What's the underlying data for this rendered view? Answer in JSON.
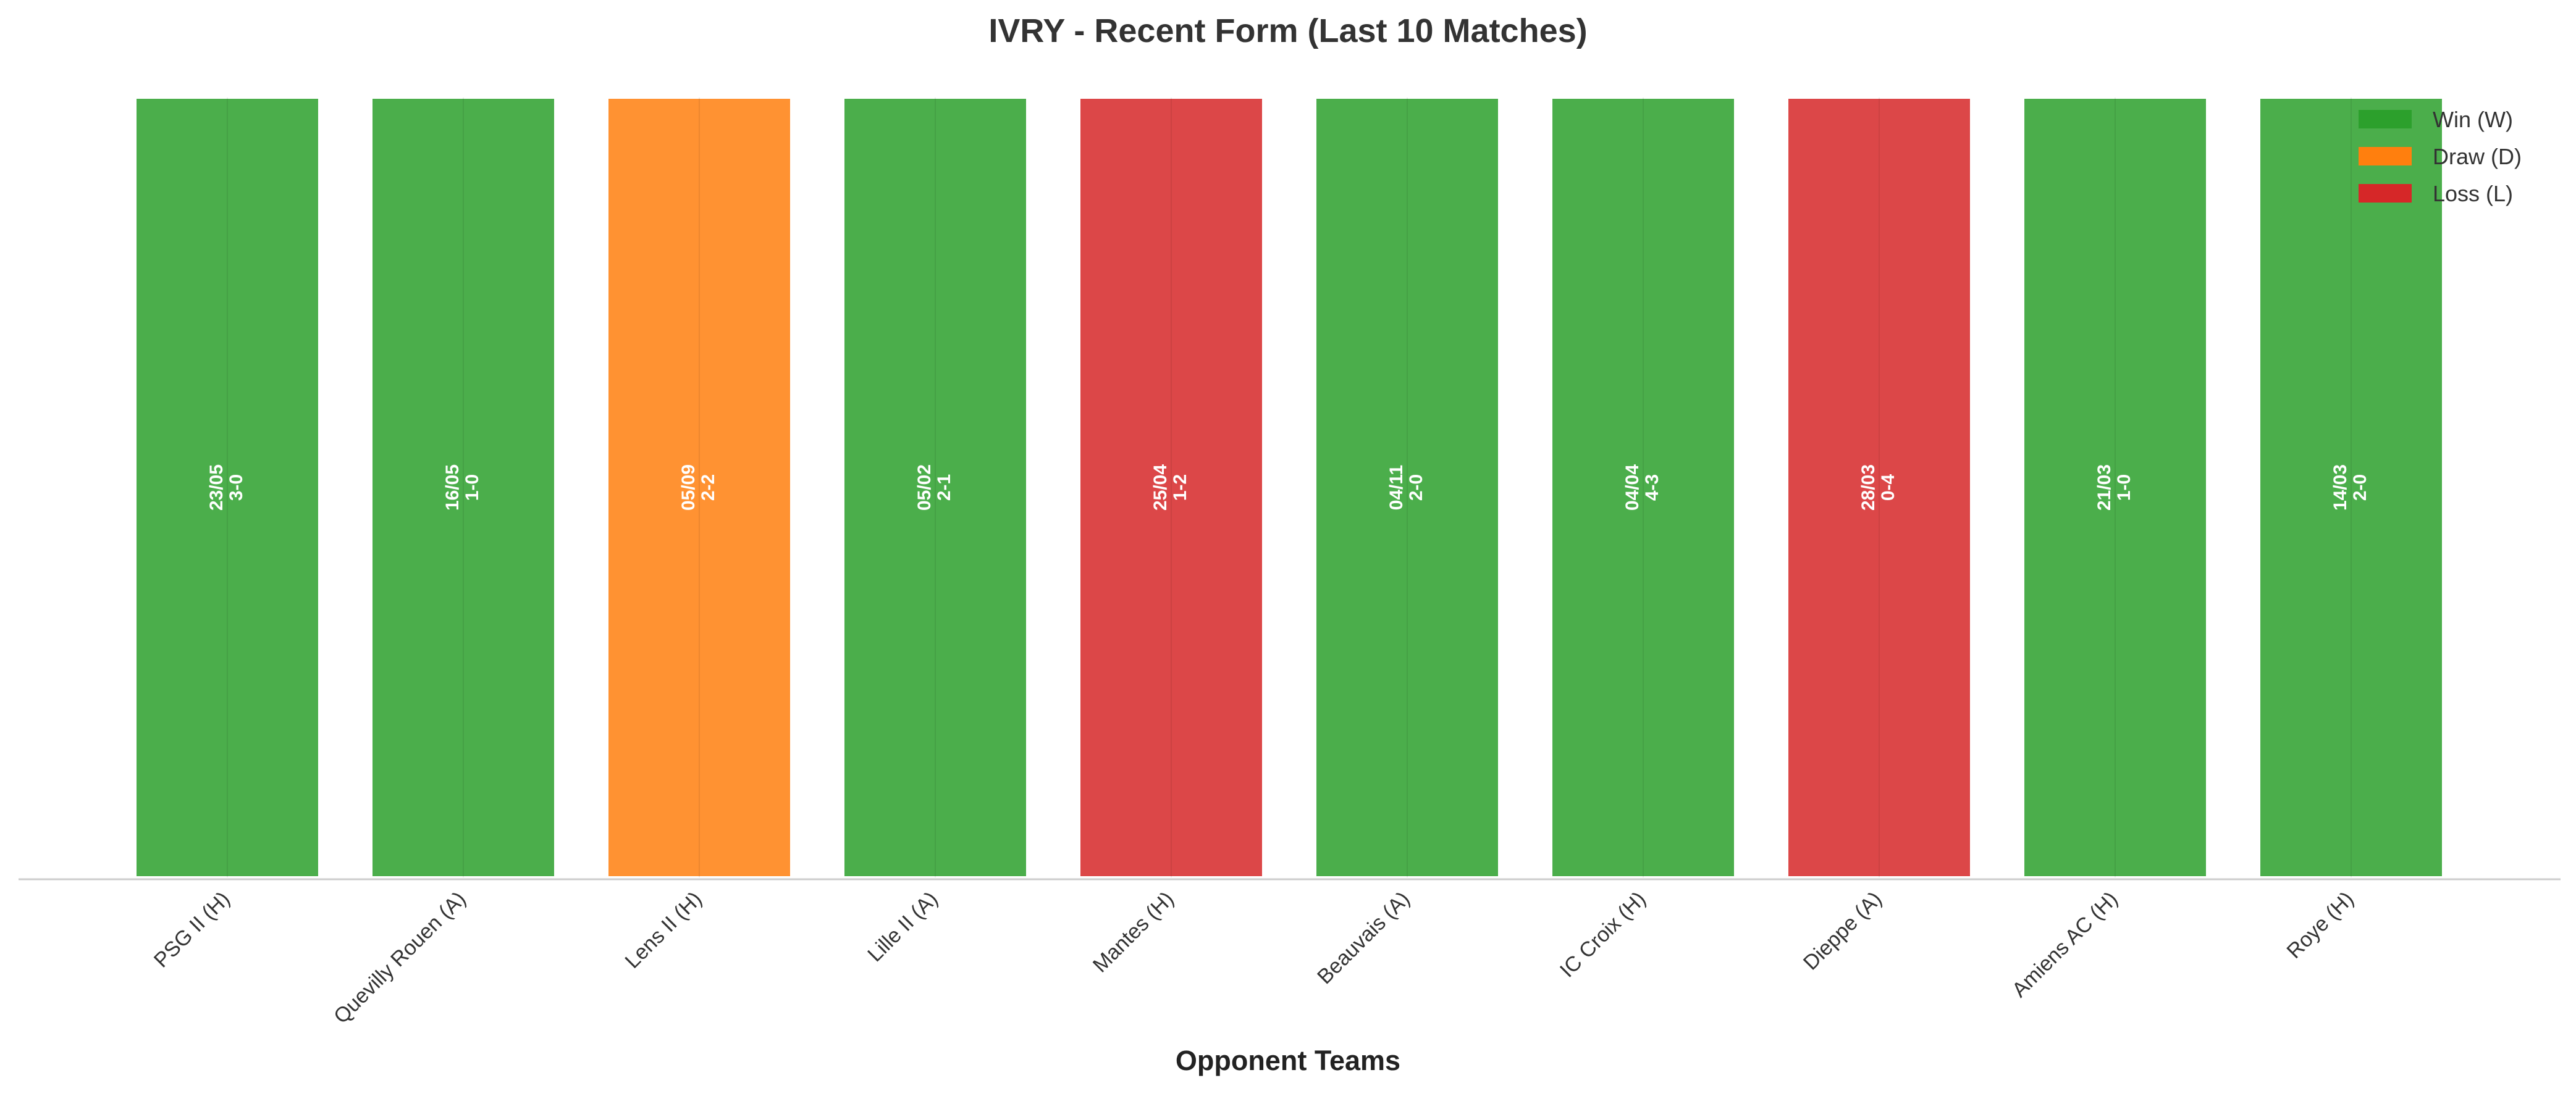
{
  "chart_data": {
    "type": "bar",
    "title": "IVRY - Recent Form (Last 10 Matches)",
    "xlabel": "Opponent Teams",
    "ylabel": "",
    "categories": [
      "PSG II (H)",
      "Quevilly Rouen (A)",
      "Lens II (H)",
      "Lille II (A)",
      "Mantes (H)",
      "Beauvais (A)",
      "IC Croix (H)",
      "Dieppe (A)",
      "Amiens AC (H)",
      "Roye (H)"
    ],
    "values": [
      1,
      1,
      1,
      1,
      1,
      1,
      1,
      1,
      1,
      1
    ],
    "results": [
      "W",
      "W",
      "D",
      "W",
      "L",
      "W",
      "W",
      "L",
      "W",
      "W"
    ],
    "dates": [
      "23/05",
      "16/05",
      "05/09",
      "05/02",
      "25/04",
      "04/11",
      "04/04",
      "28/03",
      "21/03",
      "14/03"
    ],
    "scores": [
      "3-0",
      "1-0",
      "2-2",
      "2-1",
      "1-2",
      "2-0",
      "4-3",
      "0-4",
      "1-0",
      "2-0"
    ],
    "ylim": [
      0,
      1
    ],
    "grid": false,
    "legend": {
      "placement": "top-right",
      "entries": [
        {
          "key": "W",
          "label": "Win (W)",
          "color": "#2ca02c"
        },
        {
          "key": "D",
          "label": "Draw (D)",
          "color": "#ff7f0e"
        },
        {
          "key": "L",
          "label": "Loss (L)",
          "color": "#d62728"
        }
      ]
    },
    "colors": {
      "W": "#2ca02c",
      "D": "#ff7f0e",
      "L": "#d62728"
    }
  }
}
